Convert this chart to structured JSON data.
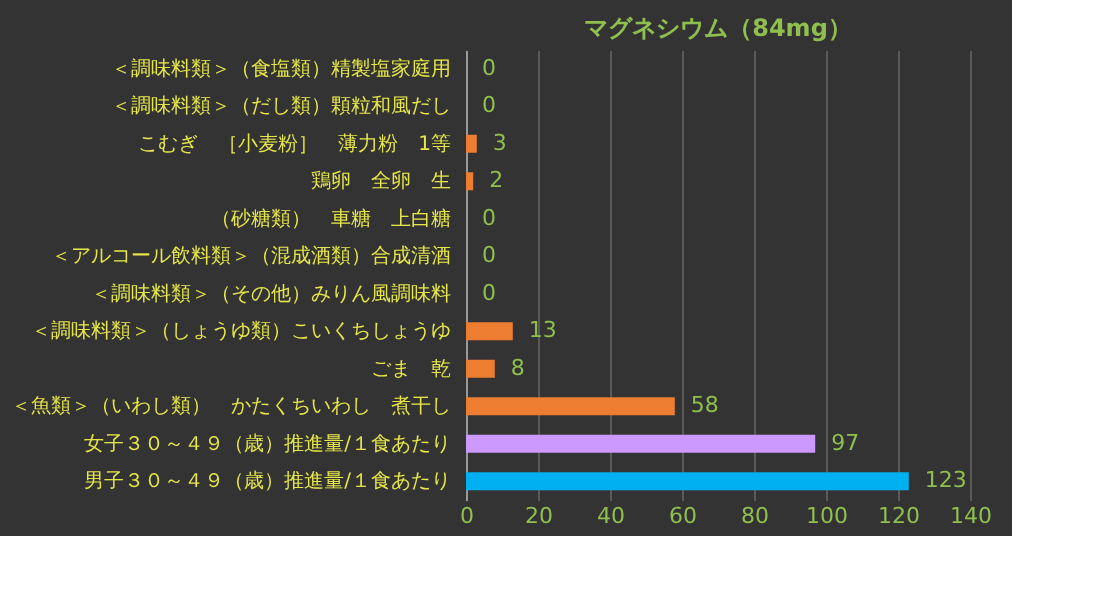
{
  "chart_data": {
    "type": "bar",
    "orientation": "horizontal",
    "title": "マグネシウム（84mg）",
    "categories": [
      "＜調味料類＞（食塩類）精製塩家庭用",
      "＜調味料類＞（だし類）顆粒和風だし",
      "こむぎ　［小麦粉］　薄力粉　1等",
      "鶏卵　全卵　生",
      "（砂糖類）　車糖　上白糖",
      "＜アルコール飲料類＞（混成酒類）合成清酒",
      "＜調味料類＞（その他）みりん風調味料",
      "＜調味料類＞（しょうゆ類）こいくちしょうゆ",
      "ごま　乾",
      "＜魚類＞（いわし類）　かたくちいわし　煮干し",
      "女子３０～４９（歳）推進量/１食あたり",
      "男子３０～４９（歳）推進量/１食あたり"
    ],
    "values": [
      0,
      0,
      3,
      2,
      0,
      0,
      0,
      13,
      8,
      58,
      97,
      123
    ],
    "colors": [
      "#ed7d31",
      "#ed7d31",
      "#ed7d31",
      "#ed7d31",
      "#ed7d31",
      "#ed7d31",
      "#ed7d31",
      "#ed7d31",
      "#ed7d31",
      "#ed7d31",
      "#cc99ff",
      "#00b0f0"
    ],
    "xlim": [
      0,
      140
    ],
    "xticks": [
      0,
      20,
      40,
      60,
      80,
      100,
      120,
      140
    ],
    "grid": "x",
    "data_labels": true
  }
}
